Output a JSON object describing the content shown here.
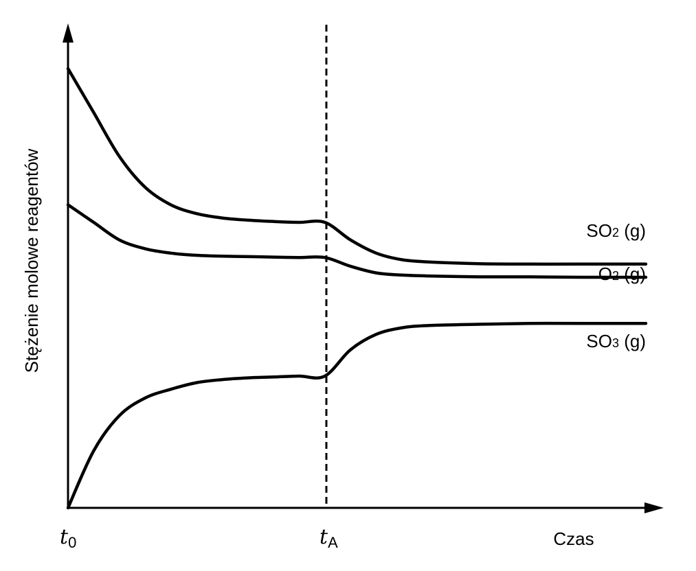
{
  "chart_data": {
    "type": "line",
    "ylabel": "Stężenie molowe reagentów",
    "xlabel": "Czas",
    "x_ticks": [
      {
        "base": "t",
        "sub": "0"
      },
      {
        "base": "t",
        "sub": "A"
      }
    ],
    "event_line": {
      "at": "tA",
      "style": "dashed"
    },
    "x_range": [
      0,
      2.25
    ],
    "y_range": [
      0,
      1.0
    ],
    "series": [
      {
        "name": "SO2 (g)",
        "label_parts": {
          "base": "SO",
          "sub": "2",
          "tail": " (g)"
        },
        "points": [
          [
            0,
            1.0
          ],
          [
            0.1,
            0.9
          ],
          [
            0.2,
            0.8
          ],
          [
            0.3,
            0.73
          ],
          [
            0.4,
            0.69
          ],
          [
            0.5,
            0.67
          ],
          [
            0.6,
            0.66
          ],
          [
            0.7,
            0.655
          ],
          [
            0.8,
            0.652
          ],
          [
            0.9,
            0.65
          ],
          [
            1.0,
            0.65
          ],
          [
            1.1,
            0.61
          ],
          [
            1.2,
            0.58
          ],
          [
            1.3,
            0.565
          ],
          [
            1.4,
            0.56
          ],
          [
            1.6,
            0.556
          ],
          [
            1.8,
            0.555
          ],
          [
            2.0,
            0.555
          ],
          [
            2.25,
            0.555
          ]
        ]
      },
      {
        "name": "O2 (g)",
        "label_parts": {
          "base": "O",
          "sub": "2",
          "tail": " (g)"
        },
        "points": [
          [
            0,
            0.69
          ],
          [
            0.1,
            0.65
          ],
          [
            0.2,
            0.61
          ],
          [
            0.3,
            0.59
          ],
          [
            0.4,
            0.58
          ],
          [
            0.5,
            0.575
          ],
          [
            0.6,
            0.573
          ],
          [
            0.7,
            0.572
          ],
          [
            0.8,
            0.571
          ],
          [
            0.9,
            0.57
          ],
          [
            1.0,
            0.57
          ],
          [
            1.1,
            0.55
          ],
          [
            1.2,
            0.535
          ],
          [
            1.3,
            0.53
          ],
          [
            1.4,
            0.528
          ],
          [
            1.6,
            0.526
          ],
          [
            1.8,
            0.526
          ],
          [
            2.0,
            0.525
          ],
          [
            2.25,
            0.525
          ]
        ]
      },
      {
        "name": "SO3 (g)",
        "label_parts": {
          "base": "SO",
          "sub": "3",
          "tail": " (g)"
        },
        "points": [
          [
            0,
            0.0
          ],
          [
            0.1,
            0.13
          ],
          [
            0.2,
            0.21
          ],
          [
            0.3,
            0.25
          ],
          [
            0.4,
            0.27
          ],
          [
            0.5,
            0.285
          ],
          [
            0.6,
            0.292
          ],
          [
            0.7,
            0.296
          ],
          [
            0.8,
            0.298
          ],
          [
            0.9,
            0.3
          ],
          [
            1.0,
            0.3
          ],
          [
            1.1,
            0.36
          ],
          [
            1.2,
            0.395
          ],
          [
            1.3,
            0.41
          ],
          [
            1.4,
            0.415
          ],
          [
            1.6,
            0.418
          ],
          [
            1.8,
            0.42
          ],
          [
            2.0,
            0.42
          ],
          [
            2.25,
            0.42
          ]
        ]
      }
    ]
  }
}
